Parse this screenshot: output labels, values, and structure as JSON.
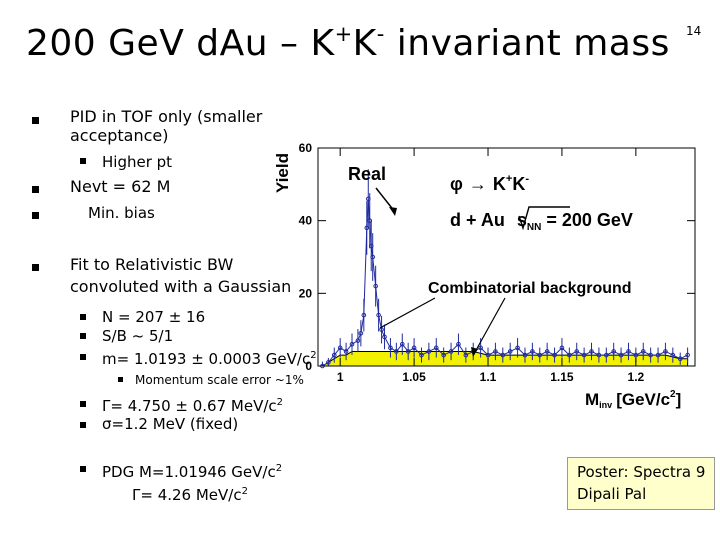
{
  "slide": {
    "title_main": "200 GeV dAu – K",
    "title_sup1": "+",
    "title_mid": "K",
    "title_sup2": "-",
    "title_end": " invariant mass",
    "number": "14"
  },
  "bullets": {
    "pid_line1": "PID in TOF only (smaller",
    "pid_line2": "acceptance)",
    "higher_pt": "Higher pt",
    "nevt": "Nevt = 62 M",
    "minbias": "Min. bias",
    "fit_line1": "Fit to Relativistic BW",
    "fit_line2": "convoluted with a Gaussian",
    "n_value": "N = 207 ± 16",
    "sb_ratio": "S/B ~ 5/1",
    "mass_value": "m= 1.0193 ± 0.0003 GeV/c",
    "mass_sup": "2",
    "momentum_scale": "Momentum scale error ~1%",
    "gamma_value": "Γ= 4.750 ± 0.67 MeV/c",
    "gamma_sup": "2",
    "sigma_value": "σ=1.2 MeV (fixed)",
    "pdg_mass": "PDG M=1.01946 GeV/c",
    "pdg_mass_sup": "2",
    "pdg_gamma": "Γ= 4.26 MeV/c",
    "pdg_gamma_sup": "2"
  },
  "poster": {
    "line1": "Poster: Spectra 9",
    "line2": "Dipali Pal"
  },
  "chart_data": {
    "type": "line",
    "ylabel": "Yield",
    "xlabel": "M",
    "xlabel_sub": "inv",
    "xlabel_units": "[GeV/c",
    "xlabel_units_sup": "2",
    "xlabel_units_end": "]",
    "xlim": [
      0.985,
      1.24
    ],
    "ylim": [
      0,
      60
    ],
    "x_ticks": [
      {
        "value": 1.0,
        "label": "1"
      },
      {
        "value": 1.05,
        "label": "1.05"
      },
      {
        "value": 1.1,
        "label": "1.1"
      },
      {
        "value": 1.15,
        "label": "1.15"
      },
      {
        "value": 1.2,
        "label": "1.2"
      }
    ],
    "y_ticks": [
      {
        "value": 0,
        "label": "0"
      },
      {
        "value": 20,
        "label": "20"
      },
      {
        "value": 40,
        "label": "40"
      },
      {
        "value": 60,
        "label": "60"
      }
    ],
    "annotations": {
      "real": "Real",
      "reaction_lhs": "φ",
      "reaction_rhs": "K",
      "reaction_sup1": "+",
      "reaction_mid": "K",
      "reaction_sup2": "-",
      "system": "d + Au",
      "energy_s": "s",
      "energy_sub": "NN",
      "energy_val": " = 200 GeV",
      "combinatorial": "Combinatorial background"
    },
    "colors": {
      "real_data": "#1f2a9e",
      "background_fill": "#f2f200",
      "background_line": "#000000"
    },
    "series": [
      {
        "role": "real",
        "x": [
          0.988,
          0.992,
          0.996,
          1.0,
          1.004,
          1.008,
          1.012,
          1.014,
          1.016,
          1.018,
          1.019,
          1.02,
          1.021,
          1.022,
          1.024,
          1.026,
          1.028,
          1.03,
          1.034,
          1.038,
          1.042,
          1.046,
          1.05,
          1.055,
          1.06,
          1.065,
          1.07,
          1.075,
          1.08,
          1.085,
          1.09,
          1.095,
          1.1,
          1.105,
          1.11,
          1.115,
          1.12,
          1.125,
          1.13,
          1.135,
          1.14,
          1.145,
          1.15,
          1.155,
          1.16,
          1.165,
          1.17,
          1.175,
          1.18,
          1.185,
          1.19,
          1.195,
          1.2,
          1.205,
          1.21,
          1.215,
          1.22,
          1.225,
          1.23,
          1.235
        ],
        "y": [
          0,
          1,
          3,
          5,
          4,
          6,
          7,
          9,
          14,
          38,
          46,
          40,
          33,
          30,
          22,
          14,
          10,
          8,
          5,
          4,
          6,
          4,
          5,
          3,
          4,
          5,
          3,
          4,
          6,
          3,
          4,
          5,
          3,
          4,
          3,
          4,
          5,
          3,
          4,
          3,
          4,
          3,
          5,
          3,
          4,
          3,
          4,
          3,
          3,
          4,
          3,
          4,
          3,
          4,
          3,
          3,
          4,
          3,
          2,
          3
        ]
      },
      {
        "role": "combinatorial",
        "x": [
          0.988,
          0.992,
          0.996,
          1.0,
          1.004,
          1.008,
          1.012,
          1.016,
          1.02,
          1.024,
          1.028,
          1.034,
          1.04,
          1.05,
          1.06,
          1.07,
          1.08,
          1.09,
          1.1,
          1.11,
          1.12,
          1.13,
          1.14,
          1.15,
          1.16,
          1.17,
          1.18,
          1.19,
          1.2,
          1.21,
          1.22,
          1.23,
          1.235
        ],
        "y": [
          0,
          1,
          2,
          3,
          3,
          4,
          4,
          4,
          4,
          4,
          4,
          4,
          4,
          4,
          4,
          4,
          4,
          4,
          3,
          3,
          3,
          3,
          3,
          3,
          3,
          3,
          3,
          3,
          3,
          3,
          3,
          2,
          2
        ]
      }
    ]
  }
}
